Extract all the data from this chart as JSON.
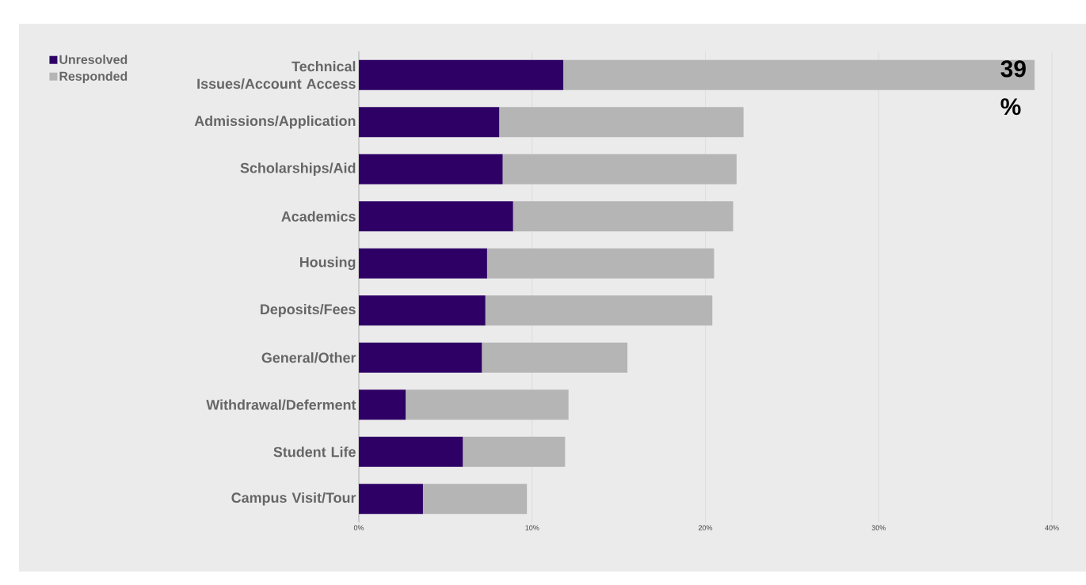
{
  "chart_data": {
    "type": "bar",
    "orientation": "horizontal",
    "stacked": true,
    "grid": "x",
    "legend": "top left",
    "categories": [
      "Technical Issues/Account Access",
      "Admissions/Application",
      "Scholarships/Aid",
      "Academics",
      "Housing",
      "Deposits/Fees",
      "General/Other",
      "Withdrawal/Deferment",
      "Student Life",
      "Campus Visit/Tour"
    ],
    "series": [
      {
        "name": "Unresolved",
        "color": "#2e0066",
        "values": [
          11.8,
          8.1,
          8.3,
          8.9,
          7.4,
          7.3,
          7.1,
          2.7,
          6.0,
          3.7
        ]
      },
      {
        "name": "Responded",
        "color": "#b5b5b5",
        "values": [
          27.2,
          14.1,
          13.5,
          12.7,
          13.1,
          13.1,
          8.4,
          9.4,
          5.9,
          6.0
        ]
      }
    ],
    "xlim": [
      0,
      40
    ],
    "xticks": [
      {
        "value": 0,
        "label": "0%"
      },
      {
        "value": 10,
        "label": "10%"
      },
      {
        "value": 20,
        "label": "20%"
      },
      {
        "value": 30,
        "label": "30%"
      },
      {
        "value": 40,
        "label": "40%"
      }
    ],
    "annotations": [
      {
        "text": "39 %",
        "x": 39,
        "y": "Technical Issues/Account Access"
      }
    ]
  }
}
